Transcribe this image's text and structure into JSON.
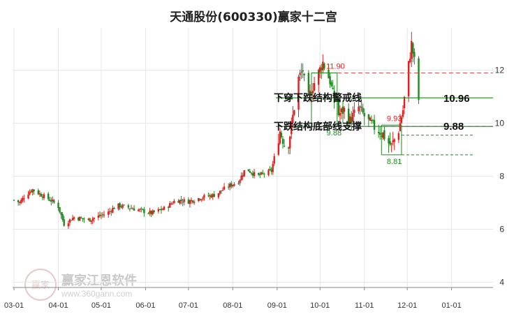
{
  "chart_data": {
    "type": "candlestick",
    "title": "天通股份(600330)赢家十二宫",
    "y_ticks": [
      "12",
      "10",
      "8",
      "6",
      "4"
    ],
    "y_tick_values": [
      12,
      10,
      8,
      6,
      4
    ],
    "ylim": [
      3.8,
      13.6
    ],
    "x_ticks": [
      "03-01",
      "04-01",
      "05-01",
      "06-01",
      "07-01",
      "08-01",
      "09-01",
      "10-01",
      "11-01",
      "12-01",
      "01-01"
    ],
    "x_tick_dates": [
      "2019-03-01",
      "2019-04-01",
      "2019-05-01",
      "2019-06-01",
      "2019-07-01",
      "2019-08-01",
      "2019-09-01",
      "2019-10-01",
      "2019-11-01",
      "2019-12-01",
      "2020-01-01"
    ],
    "xlim": [
      "2019-02-28",
      "2020-01-30"
    ],
    "levels": [
      {
        "name": "下穿下跌结构警戒线",
        "value": 10.96,
        "color": "#1f8a1f",
        "label": "10.96",
        "from": "2019-11-26"
      },
      {
        "name": "下跌结构底部线支撑",
        "value": 9.88,
        "color": "#1f8a1f",
        "label": "9.88",
        "from": "2019-11-26"
      },
      {
        "name": "resistance",
        "value": 11.9,
        "color": "#e02020",
        "label": "",
        "from": "2019-10-13"
      },
      {
        "name": "support",
        "value": 9.88,
        "color": "#e02020",
        "label": "",
        "from": "2019-11-15"
      }
    ],
    "boxes": [
      {
        "from": "2019-09-25",
        "to": "2019-10-13",
        "low": 9.88,
        "high": 11.9,
        "color": "#1f8a1f",
        "high_label": "11.90",
        "low_label": "9.88"
      },
      {
        "from": "2019-11-13",
        "to": "2019-11-27",
        "low": 8.81,
        "high": 9.93,
        "color": "#1f8a1f",
        "high_label": "9.93",
        "low_label": "8.81"
      }
    ],
    "annotations": [
      "下穿下跌结构警戒线",
      "下跌结构底部线支撑"
    ],
    "grid": true,
    "ohlc_anchors": [
      [
        "2019-03-01",
        7.1
      ],
      [
        "2019-03-05",
        7.0
      ],
      [
        "2019-03-09",
        7.3
      ],
      [
        "2019-03-14",
        7.5
      ],
      [
        "2019-03-20",
        7.3
      ],
      [
        "2019-03-28",
        7.05
      ],
      [
        "2019-04-01",
        6.85
      ],
      [
        "2019-04-05",
        6.2
      ],
      [
        "2019-04-12",
        6.45
      ],
      [
        "2019-04-22",
        6.35
      ],
      [
        "2019-05-05",
        6.6
      ],
      [
        "2019-05-12",
        6.9
      ],
      [
        "2019-05-22",
        6.8
      ],
      [
        "2019-06-05",
        6.6
      ],
      [
        "2019-06-15",
        6.8
      ],
      [
        "2019-06-22",
        7.1
      ],
      [
        "2019-07-01",
        7.05
      ],
      [
        "2019-07-10",
        7.2
      ],
      [
        "2019-07-20",
        7.3
      ],
      [
        "2019-07-28",
        7.6
      ],
      [
        "2019-08-05",
        7.8
      ],
      [
        "2019-08-10",
        8.3
      ],
      [
        "2019-08-18",
        8.0
      ],
      [
        "2019-08-28",
        8.2
      ],
      [
        "2019-09-03",
        9.7
      ],
      [
        "2019-09-08",
        8.9
      ],
      [
        "2019-09-13",
        10.6
      ],
      [
        "2019-09-16",
        11.7
      ],
      [
        "2019-09-19",
        12.0
      ],
      [
        "2019-09-22",
        10.8
      ],
      [
        "2019-09-26",
        11.4
      ],
      [
        "2019-10-03",
        12.3
      ],
      [
        "2019-10-08",
        11.6
      ],
      [
        "2019-10-13",
        10.3
      ],
      [
        "2019-10-18",
        10.5
      ],
      [
        "2019-10-22",
        10.1
      ],
      [
        "2019-10-28",
        10.6
      ],
      [
        "2019-11-03",
        10.1
      ],
      [
        "2019-11-08",
        9.85
      ],
      [
        "2019-11-14",
        9.6
      ],
      [
        "2019-11-17",
        9.3
      ],
      [
        "2019-11-20",
        9.15
      ],
      [
        "2019-11-25",
        9.75
      ],
      [
        "2019-11-28",
        10.5
      ],
      [
        "2019-12-01",
        11.8
      ],
      [
        "2019-12-04",
        13.0
      ],
      [
        "2019-12-07",
        12.0
      ],
      [
        "2019-12-09",
        10.9
      ]
    ]
  },
  "watermark": {
    "brand": "赢家江恩软件",
    "url": "www.360gann.com",
    "seal_text": "赢家"
  },
  "colors": {
    "up": "#e02020",
    "down": "#1f8a1f",
    "grid": "#e6e6e6",
    "dashed_red": "#e05050",
    "dashed_green": "#1f8a1f"
  }
}
